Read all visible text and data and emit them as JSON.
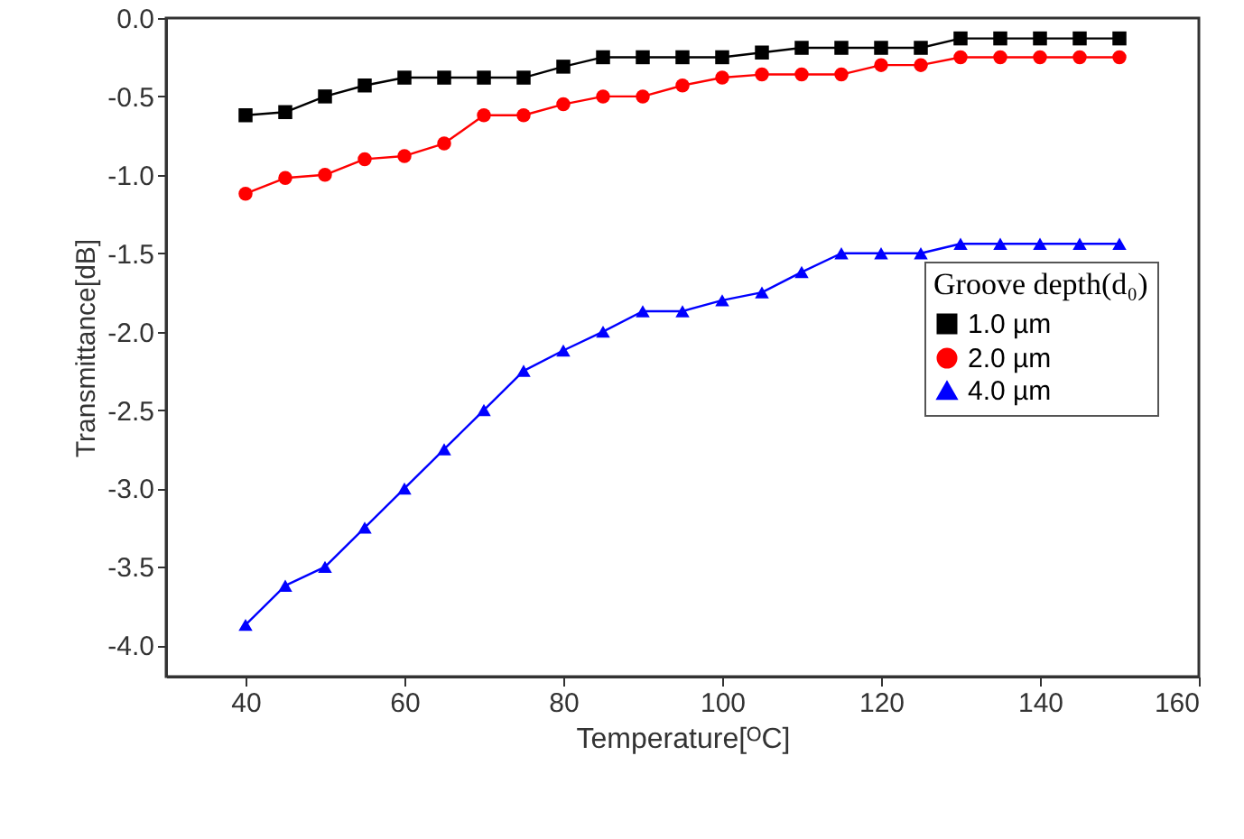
{
  "chart_data": {
    "type": "line",
    "xlabel": "Temperature[ᴼC]",
    "ylabel": "Transmittance[dB]",
    "legend_title": "Groove depth(d₀)",
    "legend": "right",
    "grid": false,
    "x": [
      40,
      45,
      50,
      55,
      60,
      65,
      70,
      75,
      80,
      85,
      90,
      95,
      100,
      105,
      110,
      115,
      120,
      125,
      130,
      135,
      140,
      145,
      150
    ],
    "xlim": [
      30,
      160
    ],
    "xticks": [
      40,
      60,
      80,
      100,
      120,
      140,
      160
    ],
    "ylim": [
      -4.2,
      0
    ],
    "yticks": [
      {
        "value": -4,
        "label": "-4.0"
      },
      {
        "value": -3.5,
        "label": "-3.5"
      },
      {
        "value": -3,
        "label": "-3.0"
      },
      {
        "value": -2.5,
        "label": "-2.5"
      },
      {
        "value": -2,
        "label": "-2.0"
      },
      {
        "value": -1.5,
        "label": "-1.5"
      },
      {
        "value": -1,
        "label": "-1.0"
      },
      {
        "value": -0.5,
        "label": "-0.5"
      },
      {
        "value": 0,
        "label": "0.0"
      }
    ],
    "series": [
      {
        "name": "1.0 µm",
        "color": "#000000",
        "marker": "square",
        "values": [
          -0.62,
          -0.6,
          -0.5,
          -0.43,
          -0.38,
          -0.38,
          -0.38,
          -0.38,
          -0.31,
          -0.25,
          -0.25,
          -0.25,
          -0.25,
          -0.22,
          -0.19,
          -0.19,
          -0.19,
          -0.19,
          -0.13,
          -0.13,
          -0.13,
          -0.13,
          -0.13
        ]
      },
      {
        "name": "2.0 µm",
        "color": "#ff0000",
        "marker": "circle",
        "values": [
          -1.12,
          -1.02,
          -1.0,
          -0.9,
          -0.88,
          -0.8,
          -0.62,
          -0.62,
          -0.55,
          -0.5,
          -0.5,
          -0.43,
          -0.38,
          -0.36,
          -0.36,
          -0.36,
          -0.3,
          -0.3,
          -0.25,
          -0.25,
          -0.25,
          -0.25,
          -0.25
        ]
      },
      {
        "name": "4.0 µm",
        "color": "#0000ff",
        "marker": "triangle",
        "values": [
          -3.87,
          -3.62,
          -3.5,
          -3.25,
          -3.0,
          -2.75,
          -2.5,
          -2.25,
          -2.12,
          -2.0,
          -1.87,
          -1.87,
          -1.8,
          -1.75,
          -1.62,
          -1.5,
          -1.5,
          -1.5,
          -1.44,
          -1.44,
          -1.44,
          -1.44,
          -1.44
        ]
      }
    ]
  }
}
